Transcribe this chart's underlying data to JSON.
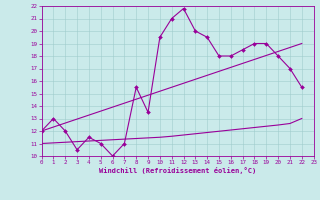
{
  "xlabel": "Windchill (Refroidissement éolien,°C)",
  "bg_color": "#caeaea",
  "line_color": "#990099",
  "xlim": [
    0,
    23
  ],
  "ylim": [
    10,
    22
  ],
  "yticks": [
    10,
    11,
    12,
    13,
    14,
    15,
    16,
    17,
    18,
    19,
    20,
    21,
    22
  ],
  "xticks": [
    0,
    1,
    2,
    3,
    4,
    5,
    6,
    7,
    8,
    9,
    10,
    11,
    12,
    13,
    14,
    15,
    16,
    17,
    18,
    19,
    20,
    21,
    22,
    23
  ],
  "series1_x": [
    0,
    1,
    2,
    3,
    4,
    5,
    6,
    7,
    8,
    9,
    10,
    11,
    12,
    13,
    14,
    15,
    16,
    17,
    18,
    19,
    20,
    21,
    22
  ],
  "series1_y": [
    12.0,
    13.0,
    12.0,
    10.5,
    11.5,
    11.0,
    10.0,
    11.0,
    15.5,
    13.5,
    19.5,
    21.0,
    21.8,
    20.0,
    19.5,
    18.0,
    18.0,
    18.5,
    19.0,
    19.0,
    18.0,
    17.0,
    15.5
  ],
  "series2_x": [
    0,
    22
  ],
  "series2_y": [
    12.0,
    19.0
  ],
  "series3_x": [
    0,
    1,
    2,
    3,
    4,
    5,
    6,
    7,
    8,
    9,
    10,
    11,
    12,
    13,
    14,
    15,
    16,
    17,
    18,
    19,
    20,
    21,
    22
  ],
  "series3_y": [
    11.0,
    11.05,
    11.1,
    11.15,
    11.2,
    11.25,
    11.3,
    11.35,
    11.4,
    11.45,
    11.5,
    11.58,
    11.68,
    11.78,
    11.88,
    11.98,
    12.08,
    12.18,
    12.28,
    12.38,
    12.48,
    12.6,
    13.0
  ]
}
